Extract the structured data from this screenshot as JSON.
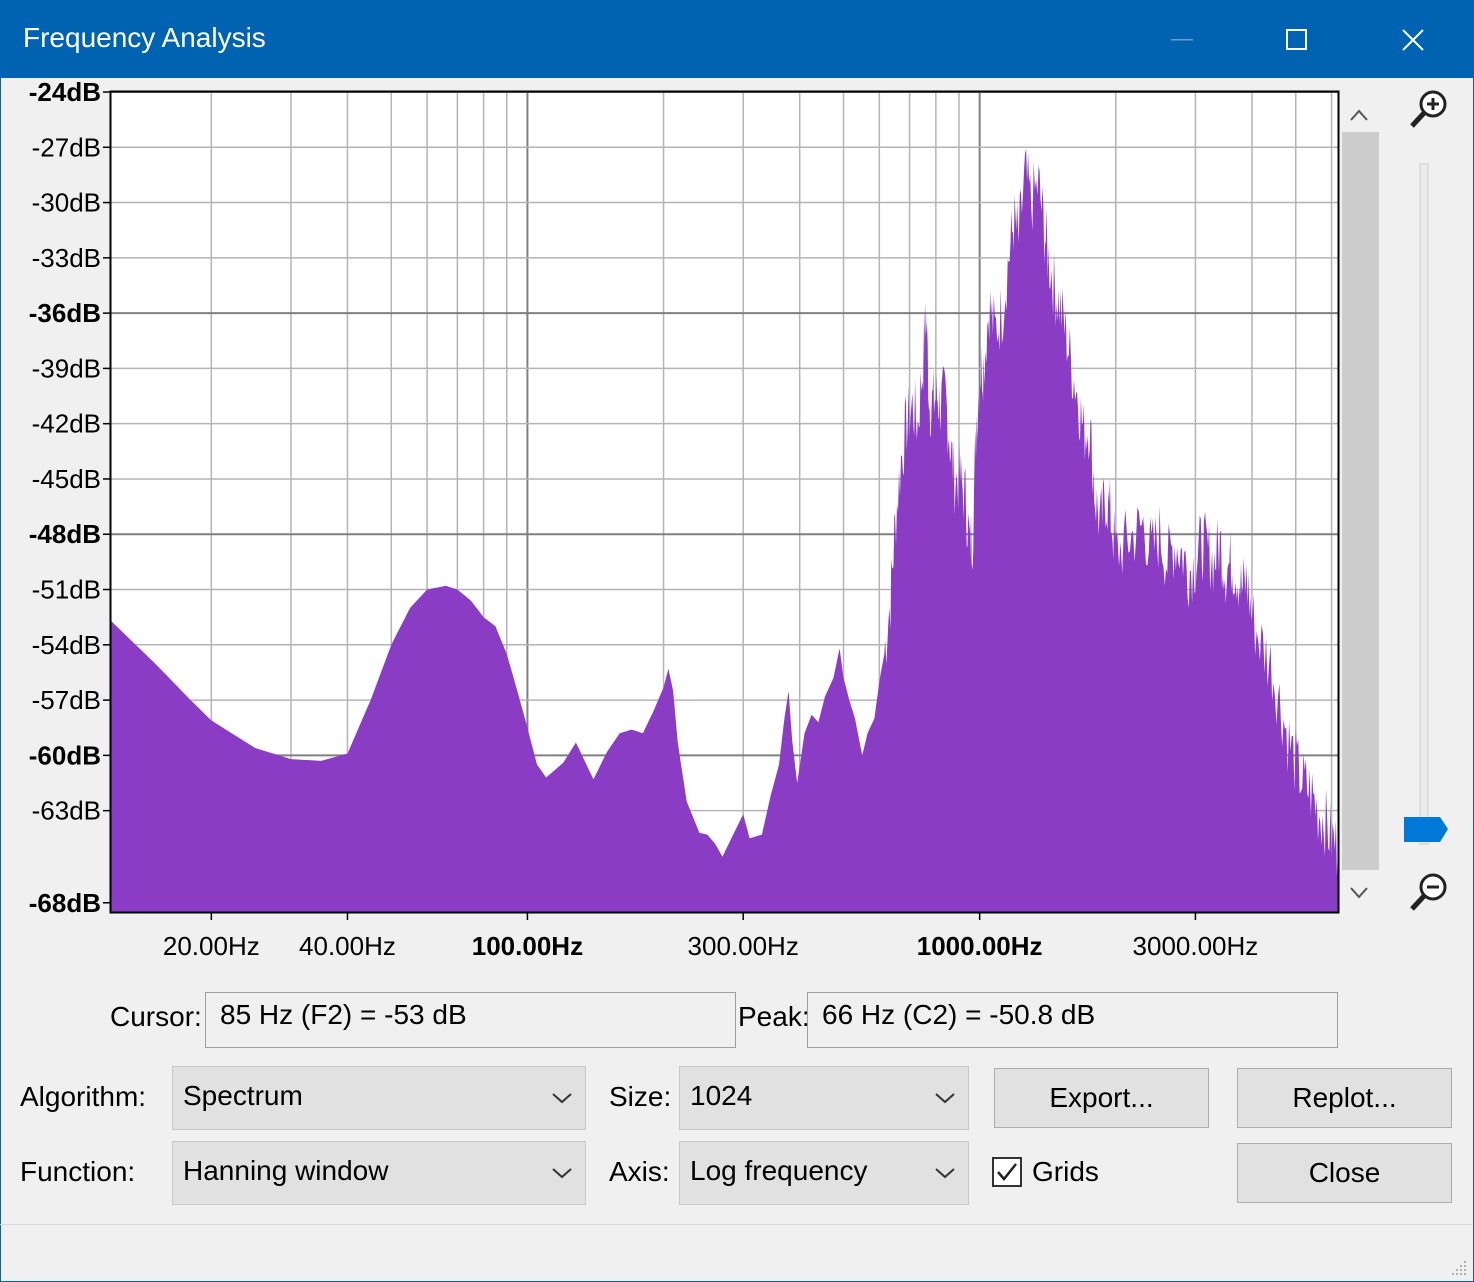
{
  "window": {
    "title": "Frequency Analysis",
    "titlebar_color": "#0063b1"
  },
  "titlebar_buttons": [
    {
      "name": "minimize-button",
      "icon": "minimize-icon"
    },
    {
      "name": "maximize-button",
      "icon": "maximize-icon"
    },
    {
      "name": "close-window-button",
      "icon": "close-icon"
    }
  ],
  "chart_data": {
    "type": "area",
    "fill_color": "#8b3cc4",
    "x_scale": "log",
    "xlim": [
      12,
      6200
    ],
    "ylim": [
      -68.5,
      -24
    ],
    "grid": true,
    "y_ticks": [
      {
        "value": -24,
        "label": "-24dB",
        "bold": true
      },
      {
        "value": -27,
        "label": "-27dB"
      },
      {
        "value": -30,
        "label": "-30dB"
      },
      {
        "value": -33,
        "label": "-33dB"
      },
      {
        "value": -36,
        "label": "-36dB",
        "bold": true
      },
      {
        "value": -39,
        "label": "-39dB"
      },
      {
        "value": -42,
        "label": "-42dB"
      },
      {
        "value": -45,
        "label": "-45dB"
      },
      {
        "value": -48,
        "label": "-48dB",
        "bold": true
      },
      {
        "value": -51,
        "label": "-51dB"
      },
      {
        "value": -54,
        "label": "-54dB"
      },
      {
        "value": -57,
        "label": "-57dB"
      },
      {
        "value": -60,
        "label": "-60dB",
        "bold": true
      },
      {
        "value": -63,
        "label": "-63dB"
      },
      {
        "value": -68,
        "label": "-68dB",
        "bold": true
      }
    ],
    "x_ticks": [
      {
        "value": 20,
        "label": "20.00Hz"
      },
      {
        "value": 40,
        "label": "40.00Hz"
      },
      {
        "value": 100,
        "label": "100.00Hz",
        "bold": true
      },
      {
        "value": 300,
        "label": "300.00Hz"
      },
      {
        "value": 1000,
        "label": "1000.00Hz",
        "bold": true
      },
      {
        "value": 3000,
        "label": "3000.00Hz"
      }
    ],
    "x_gridlines": [
      20,
      30,
      40,
      50,
      60,
      70,
      80,
      90,
      100,
      200,
      300,
      400,
      500,
      600,
      700,
      800,
      900,
      1000,
      2000,
      3000,
      4000,
      5000,
      6000
    ],
    "spectrum": [
      [
        12,
        -52.7
      ],
      [
        15,
        -55.0
      ],
      [
        18,
        -57.0
      ],
      [
        20,
        -58.1
      ],
      [
        25,
        -59.6
      ],
      [
        30,
        -60.2
      ],
      [
        35,
        -60.3
      ],
      [
        40,
        -59.9
      ],
      [
        45,
        -57.0
      ],
      [
        50,
        -54.0
      ],
      [
        55,
        -52.0
      ],
      [
        60,
        -51.0
      ],
      [
        66,
        -50.8
      ],
      [
        70,
        -51.0
      ],
      [
        75,
        -51.6
      ],
      [
        80,
        -52.5
      ],
      [
        85,
        -53.0
      ],
      [
        90,
        -54.5
      ],
      [
        95,
        -56.5
      ],
      [
        100,
        -58.5
      ],
      [
        105,
        -60.5
      ],
      [
        110,
        -61.2
      ],
      [
        120,
        -60.4
      ],
      [
        128,
        -59.3
      ],
      [
        135,
        -60.5
      ],
      [
        140,
        -61.3
      ],
      [
        150,
        -59.8
      ],
      [
        160,
        -58.8
      ],
      [
        170,
        -58.6
      ],
      [
        180,
        -58.8
      ],
      [
        190,
        -57.6
      ],
      [
        200,
        -56.3
      ],
      [
        205,
        -55.3
      ],
      [
        210,
        -56.5
      ],
      [
        215,
        -59.3
      ],
      [
        225,
        -62.5
      ],
      [
        240,
        -64.2
      ],
      [
        250,
        -64.3
      ],
      [
        260,
        -64.8
      ],
      [
        270,
        -65.5
      ],
      [
        285,
        -64.3
      ],
      [
        300,
        -63.2
      ],
      [
        310,
        -64.5
      ],
      [
        330,
        -64.3
      ],
      [
        345,
        -62.2
      ],
      [
        360,
        -60.5
      ],
      [
        370,
        -58.0
      ],
      [
        378,
        -56.5
      ],
      [
        385,
        -59.2
      ],
      [
        395,
        -61.5
      ],
      [
        410,
        -58.8
      ],
      [
        425,
        -57.8
      ],
      [
        440,
        -58.2
      ],
      [
        455,
        -56.8
      ],
      [
        475,
        -55.8
      ],
      [
        490,
        -54.2
      ],
      [
        500,
        -55.8
      ],
      [
        515,
        -57.0
      ],
      [
        530,
        -58.0
      ],
      [
        550,
        -60.0
      ],
      [
        565,
        -58.8
      ],
      [
        585,
        -58.0
      ],
      [
        600,
        -56.0
      ],
      [
        615,
        -54.5
      ],
      [
        635,
        -51.5
      ],
      [
        650,
        -47.5
      ],
      [
        670,
        -44.0
      ],
      [
        690,
        -42.0
      ],
      [
        710,
        -41.0
      ],
      [
        730,
        -42.0
      ],
      [
        750,
        -38.5
      ],
      [
        760,
        -35.8
      ],
      [
        775,
        -41.0
      ],
      [
        790,
        -40.8
      ],
      [
        805,
        -40.5
      ],
      [
        820,
        -41.0
      ],
      [
        840,
        -40.5
      ],
      [
        860,
        -43.0
      ],
      [
        880,
        -45.0
      ],
      [
        905,
        -45.0
      ],
      [
        930,
        -46.0
      ],
      [
        950,
        -48.5
      ],
      [
        965,
        -48.0
      ],
      [
        985,
        -41.5
      ],
      [
        1005,
        -39.0
      ],
      [
        1020,
        -38.8
      ],
      [
        1050,
        -35.5
      ],
      [
        1080,
        -37.0
      ],
      [
        1120,
        -36.0
      ],
      [
        1160,
        -33.0
      ],
      [
        1190,
        -31.0
      ],
      [
        1220,
        -32.0
      ],
      [
        1260,
        -28.5
      ],
      [
        1300,
        -30.0
      ],
      [
        1350,
        -29.0
      ],
      [
        1390,
        -31.5
      ],
      [
        1420,
        -33.0
      ],
      [
        1460,
        -34.5
      ],
      [
        1500,
        -35.5
      ],
      [
        1550,
        -37.0
      ],
      [
        1600,
        -39.0
      ],
      [
        1650,
        -40.5
      ],
      [
        1700,
        -42.5
      ],
      [
        1750,
        -42.0
      ],
      [
        1800,
        -46.0
      ],
      [
        1850,
        -47.5
      ],
      [
        1900,
        -46.0
      ],
      [
        1950,
        -47.0
      ],
      [
        2000,
        -49.0
      ],
      [
        2100,
        -48.5
      ],
      [
        2200,
        -48.0
      ],
      [
        2300,
        -47.5
      ],
      [
        2400,
        -49.0
      ],
      [
        2500,
        -48.0
      ],
      [
        2600,
        -49.5
      ],
      [
        2700,
        -48.5
      ],
      [
        2800,
        -49.0
      ],
      [
        2900,
        -50.0
      ],
      [
        3000,
        -49.5
      ],
      [
        3100,
        -48.5
      ],
      [
        3200,
        -49.0
      ],
      [
        3300,
        -49.5
      ],
      [
        3400,
        -48.5
      ],
      [
        3500,
        -50.0
      ],
      [
        3600,
        -49.5
      ],
      [
        3700,
        -50.0
      ],
      [
        3800,
        -51.0
      ],
      [
        3900,
        -50.5
      ],
      [
        4000,
        -52.5
      ],
      [
        4200,
        -54.0
      ],
      [
        4400,
        -55.0
      ],
      [
        4600,
        -57.0
      ],
      [
        4800,
        -59.0
      ],
      [
        5000,
        -60.5
      ],
      [
        5200,
        -61.5
      ],
      [
        5400,
        -62.0
      ],
      [
        5600,
        -63.0
      ],
      [
        5800,
        -63.5
      ],
      [
        6000,
        -64.5
      ],
      [
        6200,
        -65.0
      ]
    ]
  },
  "scroll": {
    "up_arrow": "up-arrow-icon",
    "down_arrow": "down-arrow-icon"
  },
  "zoom": {
    "zoom_in_icon": "zoom-in-icon",
    "zoom_out_icon": "zoom-out-icon",
    "slider_color": "#0078d7"
  },
  "cursor": {
    "label": "Cursor:",
    "value": "85 Hz (F2) = -53 dB"
  },
  "peak": {
    "label": "Peak:",
    "value": "66 Hz (C2) = -50.8 dB"
  },
  "controls": {
    "algorithm_label": "Algorithm:",
    "algorithm_value": "Spectrum",
    "size_label": "Size:",
    "size_value": "1024",
    "function_label": "Function:",
    "function_value": "Hanning window",
    "axis_label": "Axis:",
    "axis_value": "Log frequency",
    "grids_label": "Grids",
    "grids_checked": true,
    "export_label": "Export...",
    "replot_label": "Replot...",
    "close_label": "Close"
  }
}
